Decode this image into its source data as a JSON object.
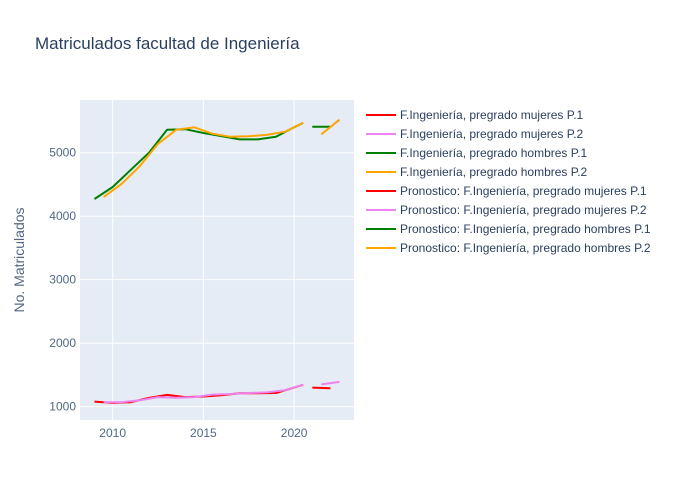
{
  "chart_data": {
    "type": "line",
    "title": "Matriculados facultad de Ingeniería",
    "xlabel": "",
    "ylabel": "No. Matriculados",
    "xlim": [
      2008.2,
      2023.3
    ],
    "ylim": [
      790,
      5830
    ],
    "x_ticks": [
      2010,
      2015,
      2020
    ],
    "y_ticks": [
      1000,
      2000,
      3000,
      4000,
      5000
    ],
    "grid": true,
    "legend_placement": "right",
    "series": [
      {
        "name": "F.Ingeniería, pregrado mujeres P.1",
        "color": "#ff0000",
        "x": [
          2009,
          2010,
          2011,
          2012,
          2013,
          2014,
          2015,
          2016,
          2017,
          2018,
          2019,
          2020,
          2020.5
        ],
        "y": [
          1080,
          1060,
          1070,
          1140,
          1185,
          1150,
          1160,
          1180,
          1210,
          1210,
          1215,
          1300,
          1345
        ]
      },
      {
        "name": "F.Ingeniería, pregrado mujeres P.2",
        "color": "#ee82ee",
        "x": [
          2009.5,
          2010.5,
          2011.5,
          2012.5,
          2013.5,
          2014.5,
          2015.5,
          2016.5,
          2017.5,
          2018.5,
          2019.5,
          2020.5
        ],
        "y": [
          1070,
          1070,
          1100,
          1150,
          1140,
          1150,
          1190,
          1200,
          1215,
          1225,
          1260,
          1345
        ]
      },
      {
        "name": "F.Ingeniería, pregrado hombres P.1",
        "color": "#008000",
        "x": [
          2009,
          2010,
          2011,
          2012,
          2013,
          2014,
          2015,
          2016,
          2017,
          2018,
          2019,
          2020,
          2020.5
        ],
        "y": [
          4270,
          4460,
          4730,
          5000,
          5360,
          5370,
          5310,
          5260,
          5210,
          5210,
          5250,
          5400,
          5470
        ]
      },
      {
        "name": "F.Ingeniería, pregrado hombres P.2",
        "color": "#ffa500",
        "x": [
          2009.5,
          2010.5,
          2011.5,
          2012.5,
          2013.5,
          2014.5,
          2015.5,
          2016.5,
          2017.5,
          2018.5,
          2019.5,
          2020.5
        ],
        "y": [
          4300,
          4510,
          4790,
          5140,
          5360,
          5400,
          5300,
          5250,
          5260,
          5280,
          5330,
          5470
        ]
      },
      {
        "name": "Pronostico: F.Ingeniería, pregrado mujeres P.1",
        "color": "#ff0000",
        "x": [
          2021,
          2022
        ],
        "y": [
          1300,
          1290
        ]
      },
      {
        "name": "Pronostico: F.Ingeniería, pregrado mujeres P.2",
        "color": "#ee82ee",
        "x": [
          2021.5,
          2022.5
        ],
        "y": [
          1350,
          1390
        ]
      },
      {
        "name": "Pronostico: F.Ingeniería, pregrado hombres P.1",
        "color": "#008000",
        "x": [
          2021,
          2022
        ],
        "y": [
          5410,
          5410
        ]
      },
      {
        "name": "Pronostico: F.Ingeniería, pregrado hombres P.2",
        "color": "#ffa500",
        "x": [
          2021.5,
          2022.5
        ],
        "y": [
          5290,
          5520
        ]
      }
    ]
  },
  "colors": {
    "plot_bg": "#e5ecf6",
    "grid": "#ffffff"
  }
}
